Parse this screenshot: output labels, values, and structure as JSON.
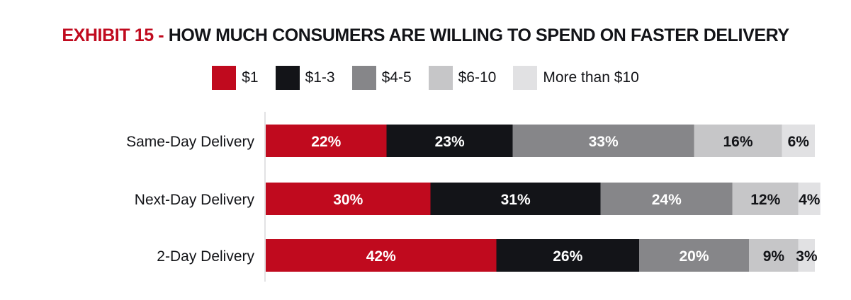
{
  "title": {
    "prefix": "EXHIBIT 15 -",
    "main": "HOW MUCH CONSUMERS ARE WILLING TO SPEND ON FASTER DELIVERY"
  },
  "colors": {
    "title_prefix": "#c00a1e",
    "title_main": "#131418"
  },
  "chart_data": {
    "type": "bar",
    "orientation": "horizontal",
    "stacked": true,
    "normalized_percent": true,
    "categories": [
      "Same-Day Delivery",
      "Next-Day Delivery",
      "2-Day Delivery"
    ],
    "series": [
      {
        "name": "$1",
        "color": "#c00a1e",
        "label_color": "#ffffff",
        "values": [
          22,
          30,
          42
        ]
      },
      {
        "name": "$1-3",
        "color": "#131418",
        "label_color": "#ffffff",
        "values": [
          23,
          31,
          26
        ]
      },
      {
        "name": "$4-5",
        "color": "#868689",
        "label_color": "#ffffff",
        "values": [
          33,
          24,
          20
        ]
      },
      {
        "name": "$6-10",
        "color": "#c6c6c8",
        "label_color": "#131418",
        "values": [
          16,
          12,
          9
        ]
      },
      {
        "name": "More than $10",
        "color": "#e1e1e3",
        "label_color": "#131418",
        "values": [
          6,
          4,
          3
        ]
      }
    ],
    "value_suffix": "%",
    "xlim": [
      0,
      100
    ],
    "legend_position": "top-center",
    "grid": false
  }
}
